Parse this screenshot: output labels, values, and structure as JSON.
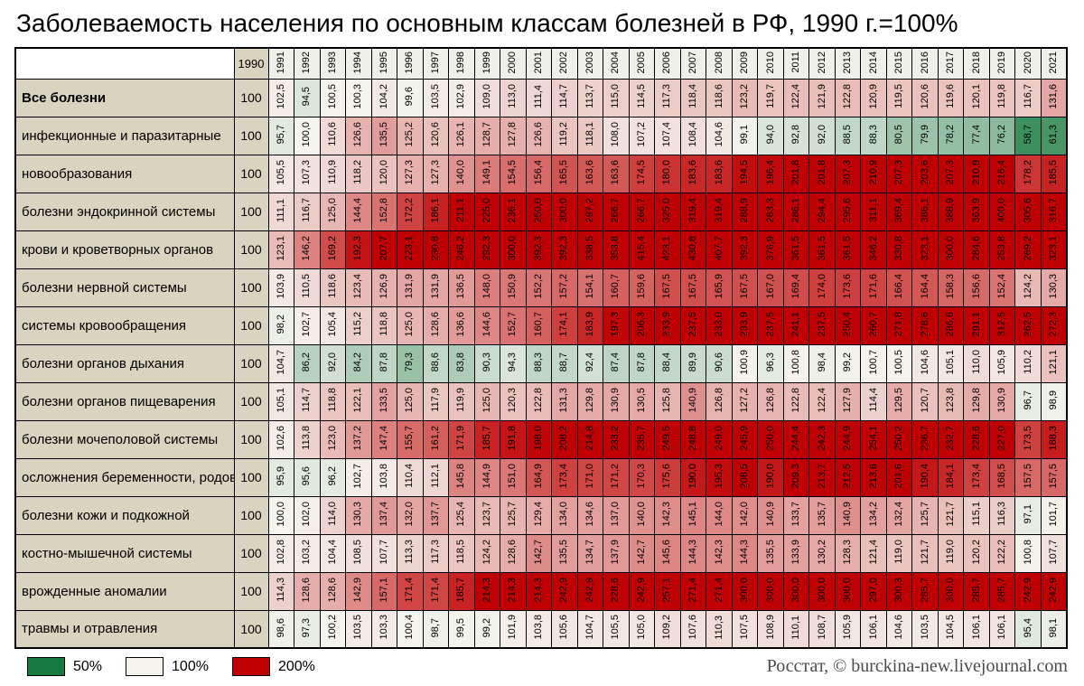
{
  "title": "Заболеваемость населения по основным классам болезней в РФ, 1990 г.=100%",
  "footer": {
    "credit": "Росстат, © burckina-new.livejournal.com",
    "legend": [
      {
        "label": "50%",
        "color": "#157a40"
      },
      {
        "label": "100%",
        "color": "#f5f4ee"
      },
      {
        "label": "200%",
        "color": "#c00000"
      }
    ]
  },
  "chart_data": {
    "type": "heatmap",
    "title": "Заболеваемость населения по основным классам болезней в РФ, 1990 г.=100%",
    "base_year_label": "1990",
    "base_value": "100",
    "color_scale": {
      "min": {
        "value": 50,
        "color": "#157a40"
      },
      "mid": {
        "value": 100,
        "color": "#f5f4ee"
      },
      "max": {
        "value": 200,
        "color": "#c00000"
      }
    },
    "years": [
      "1991",
      "1992",
      "1993",
      "1994",
      "1995",
      "1996",
      "1997",
      "1998",
      "1999",
      "2000",
      "2001",
      "2002",
      "2003",
      "2004",
      "2005",
      "2006",
      "2007",
      "2008",
      "2009",
      "2010",
      "2011",
      "2012",
      "2013",
      "2014",
      "2015",
      "2016",
      "2017",
      "2018",
      "2019",
      "2020",
      "2021"
    ],
    "rows": [
      {
        "label": "Все болезни",
        "bold": true,
        "values": [
          "102,5",
          "94,5",
          "100,5",
          "100,3",
          "104,2",
          "99,6",
          "103,5",
          "102,9",
          "109,0",
          "113,0",
          "111,4",
          "114,7",
          "113,7",
          "115,0",
          "114,5",
          "117,3",
          "118,4",
          "118,6",
          "123,2",
          "119,7",
          "122,4",
          "121,9",
          "122,8",
          "120,9",
          "119,5",
          "120,6",
          "119,6",
          "120,1",
          "119,8",
          "116,7",
          "131,6"
        ]
      },
      {
        "label": "инфекционные и паразитарные",
        "bold": false,
        "values": [
          "95,7",
          "100,0",
          "110,6",
          "126,6",
          "135,5",
          "125,2",
          "120,6",
          "126,1",
          "128,7",
          "127,8",
          "126,6",
          "119,2",
          "118,1",
          "108,0",
          "107,2",
          "107,4",
          "108,4",
          "104,6",
          "99,1",
          "94,0",
          "92,8",
          "92,0",
          "88,5",
          "88,3",
          "80,5",
          "79,9",
          "78,2",
          "77,4",
          "76,2",
          "58,7",
          "61,3"
        ]
      },
      {
        "label": "новообразования",
        "bold": false,
        "values": [
          "105,5",
          "107,3",
          "110,9",
          "118,2",
          "120,0",
          "127,3",
          "127,3",
          "140,0",
          "149,1",
          "154,5",
          "156,4",
          "165,5",
          "163,6",
          "163,6",
          "174,5",
          "180,0",
          "183,6",
          "183,6",
          "194,5",
          "196,4",
          "201,8",
          "201,8",
          "207,3",
          "210,9",
          "207,3",
          "203,6",
          "207,3",
          "210,9",
          "216,4",
          "178,2",
          "185,5"
        ]
      },
      {
        "label": "болезни эндокринной системы",
        "bold": false,
        "values": [
          "111,1",
          "116,7",
          "125,0",
          "144,4",
          "152,8",
          "172,2",
          "186,1",
          "211,1",
          "225,0",
          "236,1",
          "250,0",
          "300,0",
          "297,2",
          "266,7",
          "266,7",
          "325,0",
          "319,4",
          "319,4",
          "288,9",
          "283,3",
          "286,1",
          "294,4",
          "295,6",
          "311,1",
          "369,4",
          "386,1",
          "388,9",
          "363,9",
          "400,0",
          "305,6",
          "316,7"
        ]
      },
      {
        "label": "крови и кроветворных органов",
        "bold": false,
        "values": [
          "123,1",
          "146,2",
          "169,2",
          "192,3",
          "207,7",
          "223,1",
          "230,8",
          "246,2",
          "292,3",
          "300,0",
          "392,3",
          "392,3",
          "338,5",
          "353,8",
          "415,4",
          "423,1",
          "430,8",
          "407,7",
          "392,3",
          "376,9",
          "361,5",
          "361,5",
          "361,5",
          "346,2",
          "330,8",
          "323,1",
          "300,0",
          "284,6",
          "253,8",
          "269,2",
          "323,1"
        ]
      },
      {
        "label": "болезни нервной системы",
        "bold": false,
        "values": [
          "103,9",
          "110,5",
          "118,6",
          "123,4",
          "126,9",
          "131,9",
          "131,9",
          "136,5",
          "148,0",
          "150,9",
          "152,2",
          "157,2",
          "154,1",
          "160,7",
          "159,6",
          "167,5",
          "167,5",
          "165,9",
          "167,5",
          "167,0",
          "169,4",
          "174,0",
          "173,6",
          "171,6",
          "166,4",
          "164,4",
          "158,3",
          "156,6",
          "152,4",
          "124,2",
          "130,3"
        ]
      },
      {
        "label": "системы кровообращения",
        "bold": false,
        "values": [
          "98,2",
          "102,7",
          "105,4",
          "115,2",
          "118,8",
          "125,0",
          "128,6",
          "136,6",
          "144,6",
          "152,7",
          "160,7",
          "174,1",
          "183,9",
          "197,3",
          "206,3",
          "233,9",
          "237,5",
          "233,0",
          "233,9",
          "237,5",
          "241,1",
          "237,5",
          "250,4",
          "260,7",
          "271,8",
          "278,6",
          "286,6",
          "291,1",
          "312,5",
          "262,5",
          "272,3"
        ]
      },
      {
        "label": "болезни органов дыхания",
        "bold": false,
        "values": [
          "104,7",
          "86,2",
          "92,0",
          "84,2",
          "87,8",
          "79,3",
          "88,6",
          "83,8",
          "90,3",
          "94,3",
          "88,3",
          "88,7",
          "92,4",
          "87,4",
          "87,8",
          "88,4",
          "89,9",
          "90,6",
          "100,9",
          "96,3",
          "100,8",
          "98,4",
          "99,2",
          "100,7",
          "100,5",
          "104,6",
          "105,1",
          "110,0",
          "105,9",
          "110,2",
          "121,1"
        ]
      },
      {
        "label": "болезни органов пищеварения",
        "bold": false,
        "values": [
          "105,1",
          "114,7",
          "118,8",
          "122,1",
          "133,5",
          "125,0",
          "117,9",
          "119,9",
          "125,0",
          "120,3",
          "122,8",
          "131,3",
          "129,8",
          "130,9",
          "130,5",
          "125,8",
          "140,9",
          "126,8",
          "127,2",
          "126,8",
          "122,8",
          "122,4",
          "127,9",
          "114,4",
          "129,5",
          "120,7",
          "123,8",
          "129,8",
          "130,9",
          "96,7",
          "98,9"
        ]
      },
      {
        "label": "болезни мочеполовой системы",
        "bold": false,
        "values": [
          "102,6",
          "113,8",
          "123,0",
          "137,2",
          "147,4",
          "155,7",
          "161,2",
          "171,9",
          "185,7",
          "191,8",
          "198,0",
          "208,2",
          "214,8",
          "233,2",
          "235,7",
          "249,5",
          "248,8",
          "249,0",
          "245,9",
          "250,0",
          "244,4",
          "242,3",
          "244,9",
          "254,1",
          "250,2",
          "236,7",
          "232,7",
          "228,6",
          "227,0",
          "173,5",
          "188,3"
        ]
      },
      {
        "label": "осложнения беременности, родов",
        "bold": false,
        "values": [
          "95,9",
          "95,6",
          "96,2",
          "102,7",
          "103,8",
          "110,4",
          "112,1",
          "145,8",
          "144,9",
          "151,0",
          "164,9",
          "173,4",
          "171,0",
          "171,2",
          "170,3",
          "175,6",
          "190,0",
          "195,3",
          "208,5",
          "190,0",
          "209,3",
          "213,7",
          "212,5",
          "213,6",
          "201,6",
          "190,4",
          "184,1",
          "173,4",
          "168,5",
          "157,5",
          "157,5"
        ]
      },
      {
        "label": "болезни кожи и подкожной",
        "bold": false,
        "values": [
          "100,0",
          "102,0",
          "114,0",
          "130,3",
          "137,4",
          "132,0",
          "137,7",
          "125,4",
          "123,7",
          "125,7",
          "129,4",
          "134,0",
          "134,6",
          "137,0",
          "140,0",
          "142,3",
          "145,1",
          "144,0",
          "142,0",
          "140,9",
          "133,7",
          "135,7",
          "140,9",
          "134,2",
          "132,4",
          "125,7",
          "121,7",
          "115,1",
          "116,3",
          "97,1",
          "101,7"
        ]
      },
      {
        "label": "костно-мышечной системы",
        "bold": false,
        "values": [
          "102,8",
          "103,2",
          "104,4",
          "108,5",
          "107,7",
          "113,3",
          "117,3",
          "118,5",
          "124,2",
          "128,6",
          "142,7",
          "135,5",
          "134,7",
          "137,9",
          "142,7",
          "145,6",
          "144,3",
          "142,3",
          "144,3",
          "135,5",
          "133,9",
          "130,2",
          "128,3",
          "121,4",
          "119,0",
          "121,7",
          "119,0",
          "120,2",
          "122,2",
          "100,8",
          "107,7"
        ]
      },
      {
        "label": "врожденные аномалии",
        "bold": false,
        "values": [
          "114,3",
          "128,6",
          "128,6",
          "142,9",
          "157,1",
          "171,4",
          "171,4",
          "185,7",
          "214,3",
          "214,3",
          "214,3",
          "242,9",
          "242,9",
          "228,6",
          "242,9",
          "257,1",
          "271,4",
          "271,4",
          "300,0",
          "300,0",
          "300,0",
          "300,0",
          "300,0",
          "297,0",
          "300,3",
          "285,7",
          "300,0",
          "285,7",
          "285,7",
          "242,9",
          "242,9"
        ]
      },
      {
        "label": "травмы и отравления",
        "bold": false,
        "values": [
          "98,6",
          "97,3",
          "100,2",
          "103,5",
          "103,3",
          "100,4",
          "98,7",
          "99,5",
          "99,2",
          "101,9",
          "103,8",
          "105,6",
          "104,7",
          "105,5",
          "105,0",
          "109,2",
          "107,6",
          "110,3",
          "107,5",
          "108,9",
          "110,1",
          "108,7",
          "105,9",
          "106,1",
          "104,6",
          "103,5",
          "104,5",
          "106,1",
          "106,1",
          "95,4",
          "98,1"
        ]
      }
    ]
  }
}
